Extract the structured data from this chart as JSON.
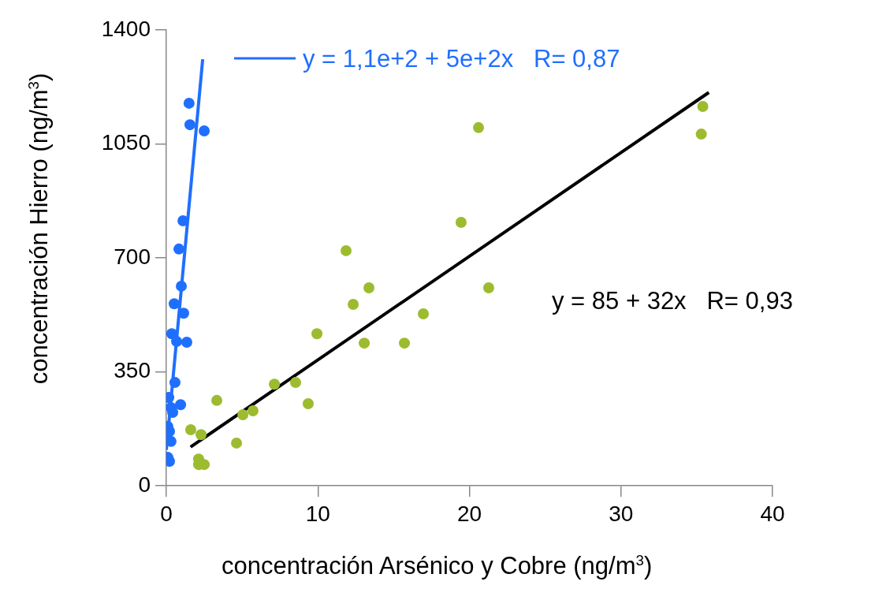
{
  "chart_data": {
    "type": "scatter",
    "xlabel": "concentración Arsénico  y Cobre (ng/m$^{3}$)",
    "ylabel": "concentración Hierro (ng/m$^{3}$)",
    "xlim": [
      0,
      40
    ],
    "xticks": [
      0,
      10,
      20,
      30,
      40
    ],
    "ylim": [
      0,
      1400
    ],
    "yticks": [
      0,
      350,
      700,
      1050,
      1400
    ],
    "grid": false,
    "legend": "top",
    "marker": "circle",
    "series": [
      {
        "color": "#1f6fff",
        "x": [
          1.5,
          1.56,
          2.5,
          1.1,
          0.83,
          0.99,
          0.52,
          1.14,
          0.36,
          0.68,
          1.35,
          0.57,
          0.16,
          0.31,
          0.42,
          0.94,
          0.1,
          0.21,
          0.31,
          0.1,
          0.21
        ],
        "values": [
          1175,
          1109,
          1090,
          814,
          727,
          613,
          559,
          530,
          467,
          443,
          441,
          317,
          271,
          240,
          225,
          249,
          182,
          167,
          136,
          87,
          75
        ]
      },
      {
        "color": "#9dbb2f",
        "x": [
          35.4,
          35.3,
          20.6,
          19.45,
          11.86,
          13.37,
          21.27,
          12.33,
          16.96,
          9.94,
          13.06,
          15.71,
          7.13,
          8.53,
          9.36,
          3.33,
          5.05,
          5.72,
          1.61,
          2.29,
          4.63,
          2.13,
          2.13,
          2.5
        ],
        "values": [
          1165,
          1080,
          1100,
          809,
          722,
          608,
          608,
          557,
          528,
          467,
          438,
          438,
          312,
          317,
          252,
          262,
          218,
          230,
          172,
          157,
          131,
          82,
          65,
          65
        ]
      },
      {
        "type": "line",
        "marker": "none",
        "name": "y = 1,1e+2 + 5e+2x   R= 0,87",
        "color": "#1f6fff",
        "x": [
          0,
          2.4
        ],
        "values": [
          110,
          1310
        ]
      },
      {
        "type": "line",
        "marker": "none",
        "name": "y = 85 + 32x   R= 0,93",
        "color": "#000000",
        "x": [
          1.6,
          35.8
        ],
        "values": [
          119,
          1208
        ]
      }
    ]
  }
}
